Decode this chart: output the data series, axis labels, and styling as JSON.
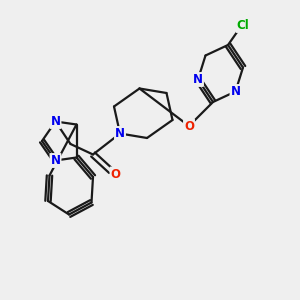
{
  "bg_color": "#efefef",
  "bond_color": "#1a1a1a",
  "bond_width": 1.6,
  "atom_colors": {
    "N": "#0000ee",
    "O": "#ee2200",
    "Cl": "#00aa00",
    "C": "#1a1a1a"
  },
  "fs": 8.5
}
